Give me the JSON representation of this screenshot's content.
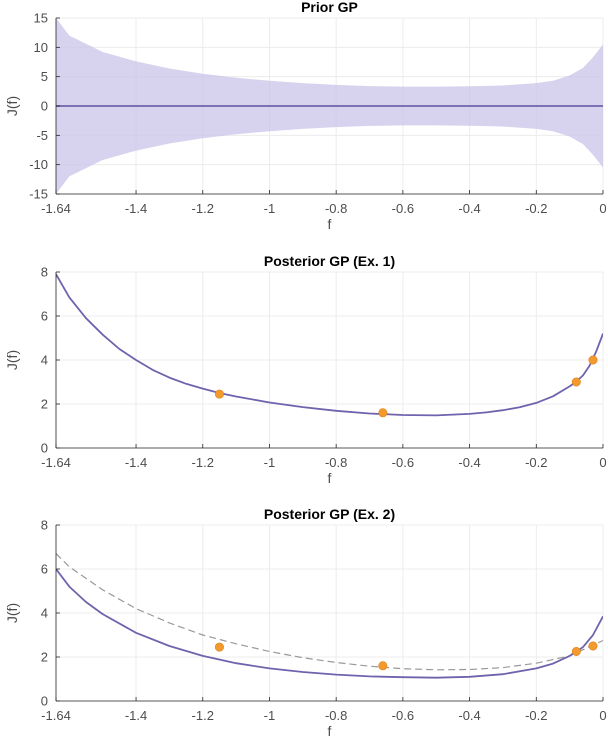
{
  "chart_data": [
    {
      "type": "line",
      "title": "Prior GP",
      "xlabel": "f",
      "ylabel": "J(f)",
      "xlim": [
        -1.64,
        0
      ],
      "ylim": [
        -15,
        15
      ],
      "xticks": [
        -1.64,
        -1.4,
        -1.2,
        -1,
        -0.8,
        -0.6,
        -0.4,
        -0.2,
        0
      ],
      "xtick_labels": [
        "-1.64",
        "-1.4",
        "-1.2",
        "-1",
        "-0.8",
        "-0.6",
        "-0.4",
        "-0.2",
        "0"
      ],
      "yticks": [
        -15,
        -10,
        -5,
        0,
        5,
        10,
        15
      ],
      "ytick_labels": [
        "-15",
        "-10",
        "-5",
        "0",
        "5",
        "10",
        "15"
      ],
      "grid": true,
      "series": [
        {
          "role": "mean",
          "color": "#6f63ad",
          "x": [
            -1.64,
            0
          ],
          "y": [
            0,
            0
          ]
        },
        {
          "role": "band",
          "color": "#c9c3e8",
          "x": [
            -1.64,
            -1.6,
            -1.5,
            -1.4,
            -1.3,
            -1.2,
            -1.1,
            -1.0,
            -0.9,
            -0.8,
            -0.7,
            -0.6,
            -0.5,
            -0.4,
            -0.3,
            -0.2,
            -0.15,
            -0.1,
            -0.06,
            -0.03,
            0
          ],
          "upper": [
            15,
            12,
            9.2,
            7.6,
            6.4,
            5.5,
            4.8,
            4.3,
            3.9,
            3.6,
            3.4,
            3.3,
            3.3,
            3.35,
            3.5,
            3.9,
            4.3,
            5.2,
            6.5,
            8.3,
            10.5
          ],
          "lower": [
            -15,
            -12,
            -9.2,
            -7.6,
            -6.4,
            -5.5,
            -4.8,
            -4.3,
            -3.9,
            -3.6,
            -3.4,
            -3.3,
            -3.3,
            -3.35,
            -3.5,
            -3.9,
            -4.3,
            -5.2,
            -6.5,
            -8.3,
            -10.5
          ]
        }
      ]
    },
    {
      "type": "line",
      "title": "Posterior GP (Ex. 1)",
      "xlabel": "f",
      "ylabel": "J(f)",
      "xlim": [
        -1.64,
        0
      ],
      "ylim": [
        0,
        8
      ],
      "xticks": [
        -1.64,
        -1.4,
        -1.2,
        -1,
        -0.8,
        -0.6,
        -0.4,
        -0.2,
        0
      ],
      "xtick_labels": [
        "-1.64",
        "-1.4",
        "-1.2",
        "-1",
        "-0.8",
        "-0.6",
        "-0.4",
        "-0.2",
        "0"
      ],
      "yticks": [
        0,
        2,
        4,
        6,
        8
      ],
      "ytick_labels": [
        "0",
        "2",
        "4",
        "6",
        "8"
      ],
      "grid": true,
      "series": [
        {
          "role": "true",
          "color": "#999999",
          "dashed": true,
          "x": [
            -1.64,
            -1.6,
            -1.55,
            -1.5,
            -1.45,
            -1.4,
            -1.35,
            -1.3,
            -1.25,
            -1.2,
            -1.15,
            -1.1,
            -1.0,
            -0.9,
            -0.8,
            -0.7,
            -0.6,
            -0.5,
            -0.4,
            -0.35,
            -0.3,
            -0.25,
            -0.2,
            -0.15,
            -0.1,
            -0.08,
            -0.06,
            -0.04,
            -0.02,
            0
          ],
          "y": [
            7.9,
            6.85,
            5.9,
            5.15,
            4.5,
            4.0,
            3.55,
            3.2,
            2.92,
            2.7,
            2.5,
            2.34,
            2.07,
            1.86,
            1.69,
            1.57,
            1.5,
            1.48,
            1.55,
            1.62,
            1.72,
            1.85,
            2.05,
            2.35,
            2.8,
            3.02,
            3.3,
            3.75,
            4.4,
            5.2
          ]
        },
        {
          "role": "mean",
          "color": "#6f63ad",
          "x": [
            -1.64,
            -1.6,
            -1.55,
            -1.5,
            -1.45,
            -1.4,
            -1.35,
            -1.3,
            -1.25,
            -1.2,
            -1.15,
            -1.1,
            -1.0,
            -0.9,
            -0.8,
            -0.7,
            -0.6,
            -0.5,
            -0.4,
            -0.35,
            -0.3,
            -0.25,
            -0.2,
            -0.15,
            -0.1,
            -0.08,
            -0.06,
            -0.04,
            -0.02,
            0
          ],
          "y": [
            7.9,
            6.85,
            5.9,
            5.15,
            4.5,
            4.0,
            3.55,
            3.2,
            2.92,
            2.7,
            2.5,
            2.34,
            2.07,
            1.86,
            1.69,
            1.57,
            1.5,
            1.48,
            1.55,
            1.62,
            1.72,
            1.85,
            2.05,
            2.35,
            2.8,
            3.02,
            3.3,
            3.75,
            4.4,
            5.2
          ]
        },
        {
          "role": "observations",
          "color": "#f29a2e",
          "x": [
            -1.15,
            -0.66,
            -0.08,
            -0.03
          ],
          "y": [
            2.45,
            1.6,
            3.0,
            4.0
          ]
        }
      ]
    },
    {
      "type": "line",
      "title": "Posterior GP (Ex. 2)",
      "xlabel": "f",
      "ylabel": "J(f)",
      "xlim": [
        -1.64,
        0
      ],
      "ylim": [
        0,
        8
      ],
      "xticks": [
        -1.64,
        -1.4,
        -1.2,
        -1,
        -0.8,
        -0.6,
        -0.4,
        -0.2,
        0
      ],
      "xtick_labels": [
        "-1.64",
        "-1.4",
        "-1.2",
        "-1",
        "-0.8",
        "-0.6",
        "-0.4",
        "-0.2",
        "0"
      ],
      "yticks": [
        0,
        2,
        4,
        6,
        8
      ],
      "ytick_labels": [
        "0",
        "2",
        "4",
        "6",
        "8"
      ],
      "grid": true,
      "series": [
        {
          "role": "true",
          "color": "#999999",
          "dashed": true,
          "x": [
            -1.64,
            -1.6,
            -1.5,
            -1.4,
            -1.3,
            -1.2,
            -1.1,
            -1.0,
            -0.9,
            -0.8,
            -0.7,
            -0.6,
            -0.5,
            -0.4,
            -0.3,
            -0.2,
            -0.1,
            0
          ],
          "y": [
            6.7,
            6.1,
            5.05,
            4.2,
            3.55,
            3.0,
            2.6,
            2.25,
            1.97,
            1.75,
            1.58,
            1.47,
            1.42,
            1.43,
            1.52,
            1.72,
            2.05,
            2.75
          ]
        },
        {
          "role": "mean",
          "color": "#6f63ad",
          "x": [
            -1.64,
            -1.6,
            -1.55,
            -1.5,
            -1.4,
            -1.3,
            -1.2,
            -1.1,
            -1.0,
            -0.9,
            -0.8,
            -0.7,
            -0.6,
            -0.5,
            -0.4,
            -0.3,
            -0.2,
            -0.15,
            -0.1,
            -0.06,
            -0.03,
            0
          ],
          "y": [
            6.0,
            5.2,
            4.5,
            3.95,
            3.1,
            2.5,
            2.05,
            1.72,
            1.48,
            1.32,
            1.2,
            1.12,
            1.08,
            1.06,
            1.1,
            1.22,
            1.48,
            1.7,
            2.05,
            2.45,
            3.0,
            3.85
          ]
        },
        {
          "role": "observations",
          "color": "#f29a2e",
          "x": [
            -1.15,
            -0.66,
            -0.08,
            -0.03
          ],
          "y": [
            2.45,
            1.6,
            2.25,
            2.5
          ]
        }
      ]
    }
  ]
}
